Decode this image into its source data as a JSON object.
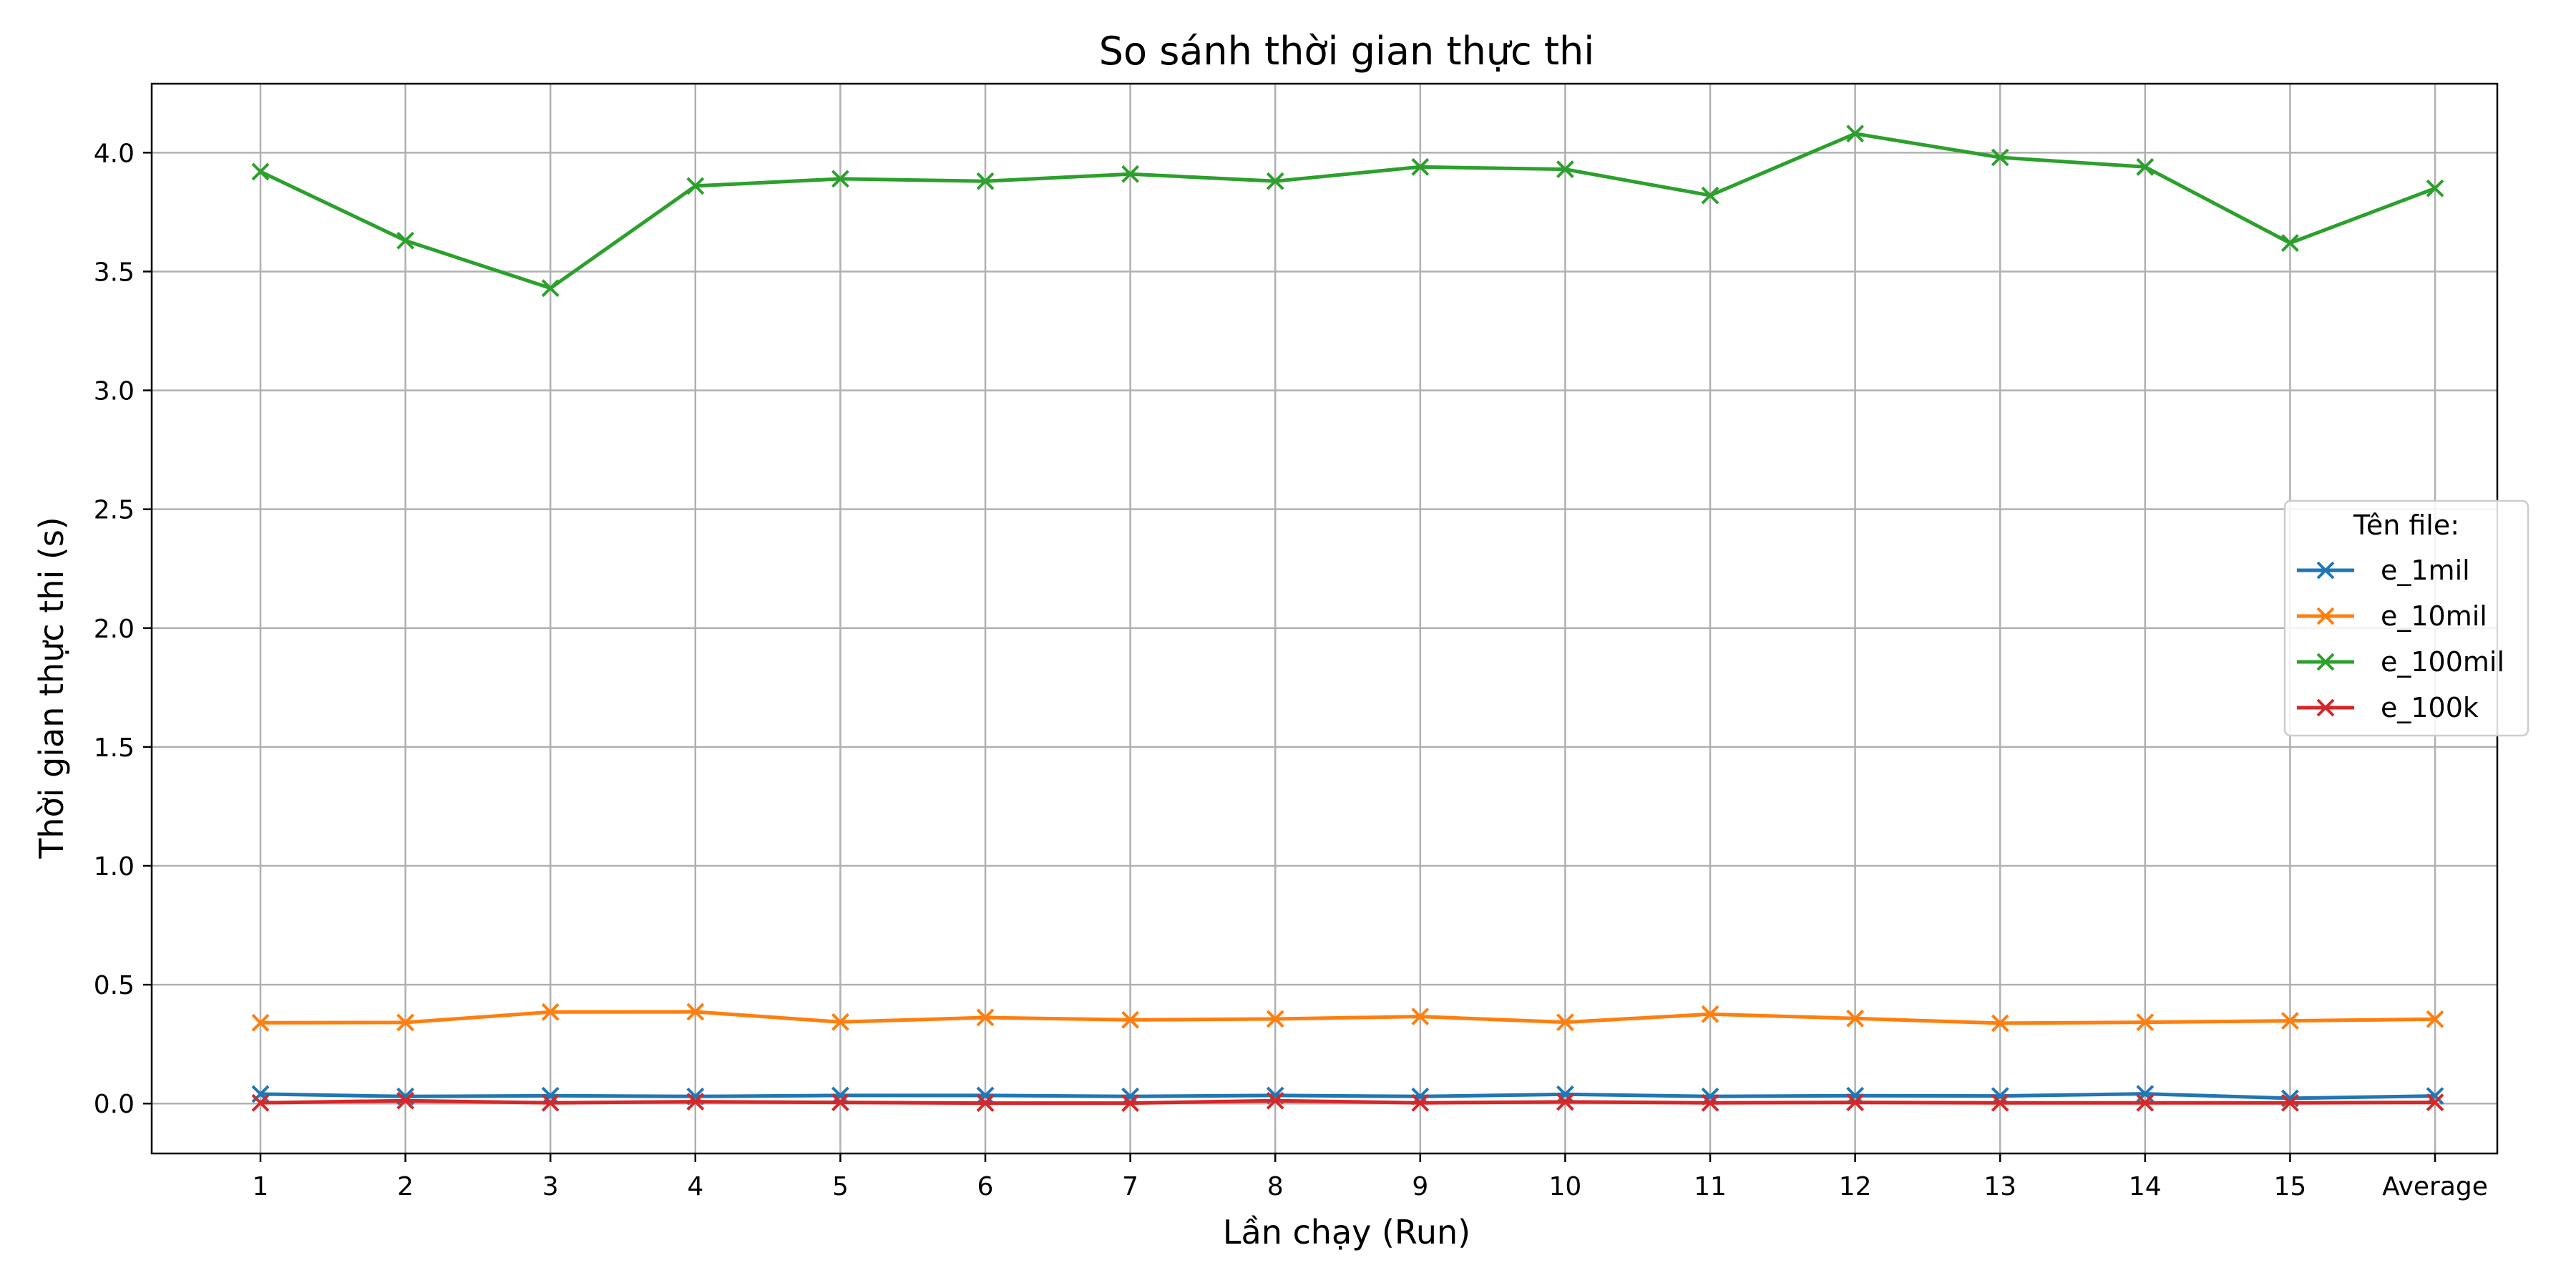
{
  "chart_data": {
    "type": "line",
    "title": "So sánh thời gian thực thi",
    "xlabel": "Lần chạy (Run)",
    "ylabel": "Thời gian thực thi (s)",
    "categories": [
      "1",
      "2",
      "3",
      "4",
      "5",
      "6",
      "7",
      "8",
      "9",
      "10",
      "11",
      "12",
      "13",
      "14",
      "15",
      "Average"
    ],
    "ylim": [
      -0.21,
      4.29
    ],
    "yticks": [
      0.0,
      0.5,
      1.0,
      1.5,
      2.0,
      2.5,
      3.0,
      3.5,
      4.0
    ],
    "ytick_labels": [
      "0.0",
      "0.5",
      "1.0",
      "1.5",
      "2.0",
      "2.5",
      "3.0",
      "3.5",
      "4.0"
    ],
    "grid": true,
    "legend": {
      "title": "Tên file:",
      "placement": "center-right"
    },
    "marker": "x",
    "series": [
      {
        "name": "e_1mil",
        "color": "#1f77b4",
        "values": [
          0.04,
          0.03,
          0.033,
          0.03,
          0.034,
          0.034,
          0.03,
          0.034,
          0.03,
          0.039,
          0.03,
          0.033,
          0.032,
          0.041,
          0.022,
          0.032
        ]
      },
      {
        "name": "e_10mil",
        "color": "#ff7f0e",
        "values": [
          0.34,
          0.341,
          0.385,
          0.386,
          0.343,
          0.362,
          0.352,
          0.356,
          0.366,
          0.342,
          0.376,
          0.358,
          0.338,
          0.342,
          0.348,
          0.355
        ]
      },
      {
        "name": "e_100mil",
        "color": "#2ca02c",
        "values": [
          3.92,
          3.63,
          3.43,
          3.86,
          3.89,
          3.88,
          3.91,
          3.88,
          3.94,
          3.93,
          3.82,
          4.08,
          3.98,
          3.94,
          3.62,
          3.85
        ]
      },
      {
        "name": "e_100k",
        "color": "#d62728",
        "values": [
          0.003,
          0.012,
          0.003,
          0.008,
          0.005,
          0.002,
          0.002,
          0.012,
          0.003,
          0.007,
          0.003,
          0.005,
          0.003,
          0.003,
          0.003,
          0.005
        ]
      }
    ]
  }
}
